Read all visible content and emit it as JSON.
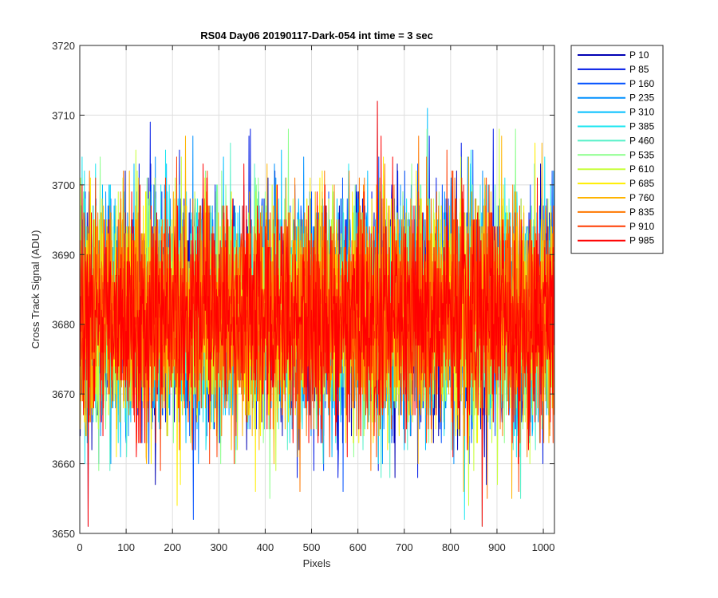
{
  "chart_data": {
    "type": "line",
    "title": "RS04 Day06 20190117-Dark-054 int time = 3 sec",
    "xlabel": "Pixels",
    "ylabel": "Cross Track Signal (ADU)",
    "xlim": [
      0,
      1024
    ],
    "ylim": [
      3650,
      3720
    ],
    "xticks": [
      0,
      100,
      200,
      300,
      400,
      500,
      600,
      700,
      800,
      900,
      1000
    ],
    "yticks": [
      3650,
      3660,
      3670,
      3680,
      3690,
      3700,
      3710,
      3720
    ],
    "grid": true,
    "legend_position": "outside-top-right",
    "noise_model": {
      "mean": 3681.5,
      "std": 7.8,
      "min": 3651,
      "max": 3712,
      "points_per_series": 1024
    },
    "series": [
      {
        "name": "P 10",
        "color": "#0000b4"
      },
      {
        "name": "P 85",
        "color": "#0019e6"
      },
      {
        "name": "P 160",
        "color": "#0050ff"
      },
      {
        "name": "P 235",
        "color": "#0090ff"
      },
      {
        "name": "P 310",
        "color": "#00bfff"
      },
      {
        "name": "P 385",
        "color": "#1be6f0"
      },
      {
        "name": "P 460",
        "color": "#55f0c8"
      },
      {
        "name": "P 535",
        "color": "#8cff8c"
      },
      {
        "name": "P 610",
        "color": "#c8ff3c"
      },
      {
        "name": "P 685",
        "color": "#ffee00"
      },
      {
        "name": "P 760",
        "color": "#ffb400"
      },
      {
        "name": "P 835",
        "color": "#ff7800"
      },
      {
        "name": "P 910",
        "color": "#ff3c00"
      },
      {
        "name": "P 985",
        "color": "#ff0000"
      }
    ],
    "spikes": [
      {
        "x": 18,
        "y": 3651
      },
      {
        "x": 152,
        "y": 3709
      },
      {
        "x": 245,
        "y": 3652
      },
      {
        "x": 642,
        "y": 3712
      },
      {
        "x": 750,
        "y": 3711
      },
      {
        "x": 830,
        "y": 3652
      },
      {
        "x": 868,
        "y": 3651
      },
      {
        "x": 940,
        "y": 3708
      }
    ]
  }
}
